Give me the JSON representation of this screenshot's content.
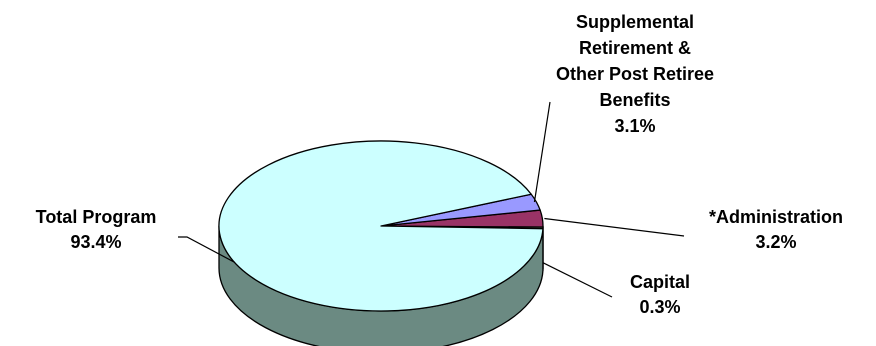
{
  "chart_data": {
    "type": "pie",
    "style": "3d",
    "title": "",
    "legend": "none",
    "slices": [
      {
        "label": "Total Program",
        "value": 93.4,
        "value_label": "93.4%",
        "color": "#ccffff",
        "side_color": "#6b8a82"
      },
      {
        "label": "Supplemental Retirement & Other Post Retiree Benefits",
        "value": 3.1,
        "value_label": "3.1%",
        "color": "#9999ff",
        "side_color": "#5a5a99"
      },
      {
        "label": "*Administration",
        "value": 3.2,
        "value_label": "3.2%",
        "color": "#993366",
        "side_color": "#5c1f3d"
      },
      {
        "label": "Capital",
        "value": 0.3,
        "value_label": "0.3%",
        "color": "#ffffcc",
        "side_color": "#99997a"
      }
    ]
  }
}
